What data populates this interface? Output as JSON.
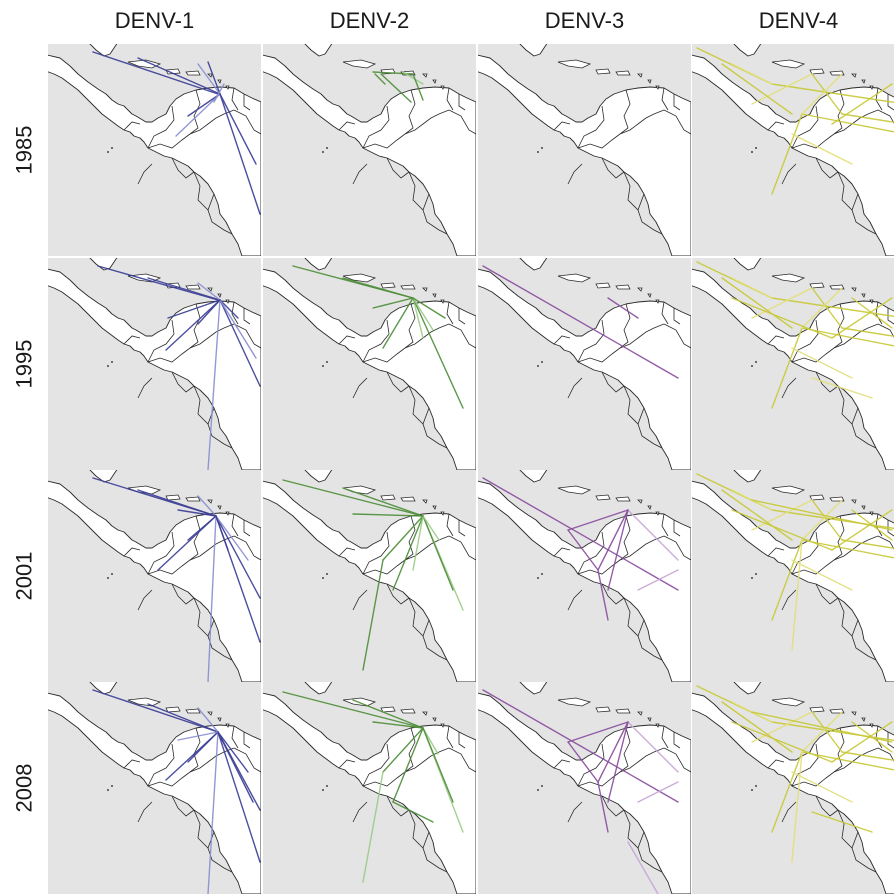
{
  "column_headers": [
    "DENV-1",
    "DENV-2",
    "DENV-3",
    "DENV-4"
  ],
  "row_headers": [
    "1985",
    "1995",
    "2001",
    "2008"
  ],
  "serotype_colors": {
    "DENV-1": "#3c3f96",
    "DENV-2": "#4f8f3a",
    "DENV-3": "#8a4fa0",
    "DENV-4": "#c8c93a"
  },
  "map_colors": {
    "ocean": "#e4e4e4",
    "land": "#ffffff",
    "coast": "#2a2a2a"
  }
}
